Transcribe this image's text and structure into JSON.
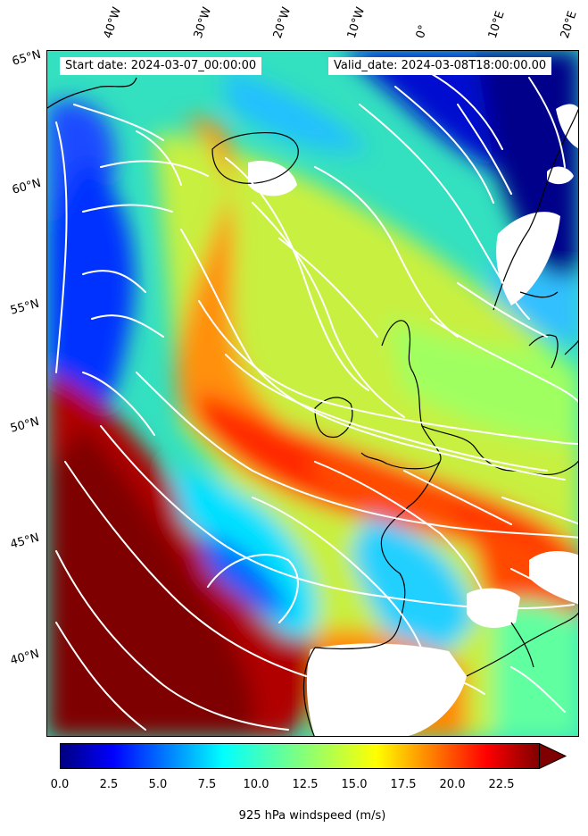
{
  "header": {
    "start_date": "Start date: 2024-03-07_00:00:00",
    "valid_date": "Valid_date: 2024-03-08T18:00:00.00"
  },
  "lon_labels": [
    "40°W",
    "30°W",
    "20°W",
    "10°W",
    "0°",
    "10°E",
    "20°E"
  ],
  "lat_labels": [
    "65°N",
    "60°N",
    "55°N",
    "50°N",
    "45°N",
    "40°N"
  ],
  "colorbar": {
    "label": "925 hPa windspeed (m/s)",
    "ticks": [
      "0.0",
      "2.5",
      "5.0",
      "7.5",
      "10.0",
      "12.5",
      "15.0",
      "17.5",
      "20.0",
      "22.5"
    ],
    "min": 0,
    "max": 25,
    "extend": "max",
    "colormap": [
      "#00007f",
      "#0000ff",
      "#007fff",
      "#00ffff",
      "#7fff7f",
      "#ffff00",
      "#ff7f00",
      "#ff0000",
      "#7f0000"
    ]
  },
  "colors": {
    "background": "#ffffff",
    "streamlines": "#ffffff",
    "coastline": "#000000",
    "missing": "#ffffff"
  }
}
